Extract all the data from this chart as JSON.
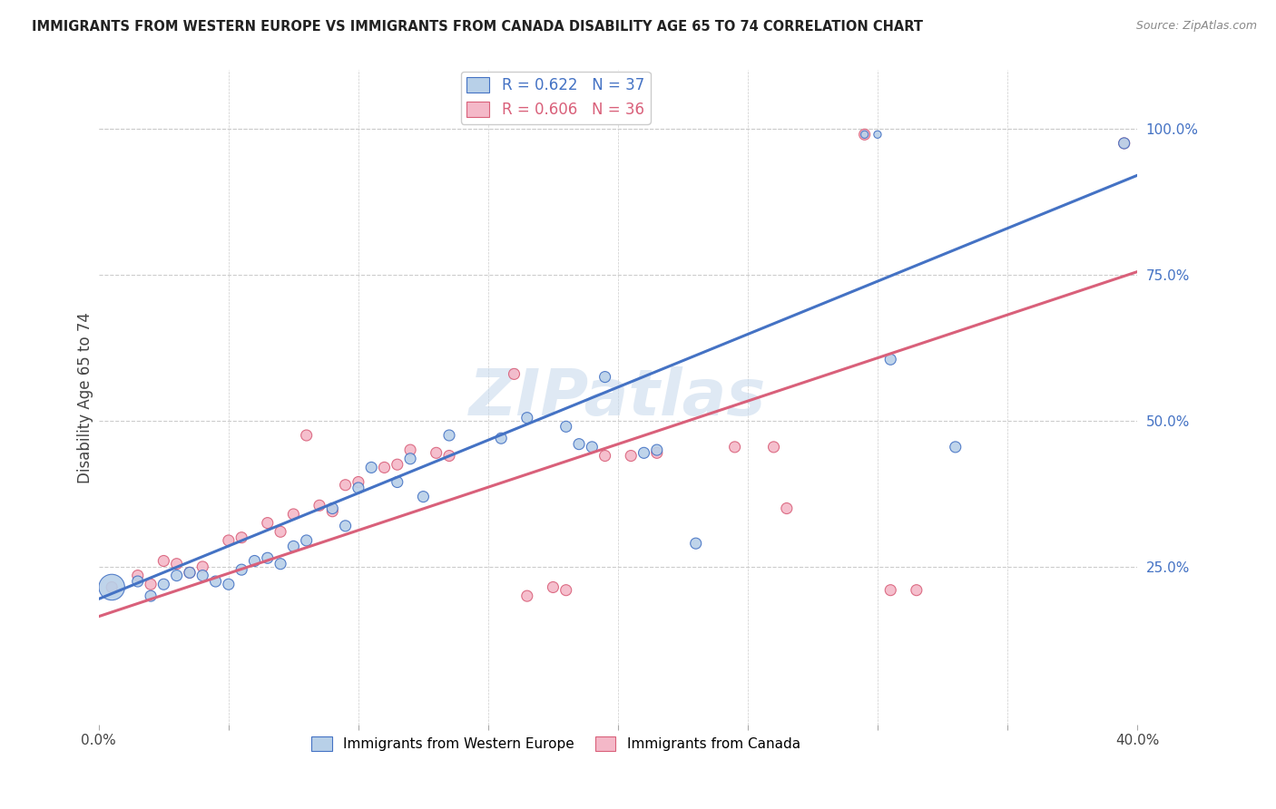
{
  "title": "IMMIGRANTS FROM WESTERN EUROPE VS IMMIGRANTS FROM CANADA DISABILITY AGE 65 TO 74 CORRELATION CHART",
  "source": "Source: ZipAtlas.com",
  "ylabel": "Disability Age 65 to 74",
  "xlim": [
    0.0,
    0.4
  ],
  "ylim": [
    -0.02,
    1.1
  ],
  "right_yticks": [
    0.25,
    0.5,
    0.75,
    1.0
  ],
  "right_yticklabels": [
    "25.0%",
    "50.0%",
    "75.0%",
    "100.0%"
  ],
  "xticks": [
    0.0,
    0.05,
    0.1,
    0.15,
    0.2,
    0.25,
    0.3,
    0.35,
    0.4
  ],
  "xticklabels": [
    "0.0%",
    "",
    "",
    "",
    "",
    "",
    "",
    "",
    "40.0%"
  ],
  "blue_R": 0.622,
  "blue_N": 37,
  "pink_R": 0.606,
  "pink_N": 36,
  "blue_color": "#b8d0e8",
  "blue_line_color": "#4472c4",
  "pink_color": "#f4b8c8",
  "pink_line_color": "#d9607a",
  "blue_line_x0": 0.0,
  "blue_line_y0": 0.195,
  "blue_line_x1": 0.4,
  "blue_line_y1": 0.92,
  "pink_line_x0": 0.0,
  "pink_line_y0": 0.165,
  "pink_line_x1": 0.4,
  "pink_line_y1": 0.755,
  "blue_scatter_x": [
    0.295,
    0.3,
    0.005,
    0.015,
    0.02,
    0.025,
    0.03,
    0.035,
    0.04,
    0.045,
    0.05,
    0.055,
    0.06,
    0.065,
    0.07,
    0.075,
    0.08,
    0.09,
    0.095,
    0.1,
    0.105,
    0.115,
    0.12,
    0.125,
    0.135,
    0.155,
    0.165,
    0.18,
    0.185,
    0.19,
    0.195,
    0.21,
    0.215,
    0.23,
    0.305,
    0.33,
    0.395
  ],
  "blue_scatter_y": [
    0.99,
    0.99,
    0.215,
    0.225,
    0.2,
    0.22,
    0.235,
    0.24,
    0.235,
    0.225,
    0.22,
    0.245,
    0.26,
    0.265,
    0.255,
    0.285,
    0.295,
    0.35,
    0.32,
    0.385,
    0.42,
    0.395,
    0.435,
    0.37,
    0.475,
    0.47,
    0.505,
    0.49,
    0.46,
    0.455,
    0.575,
    0.445,
    0.45,
    0.29,
    0.605,
    0.455,
    0.975
  ],
  "blue_scatter_sizes": [
    35,
    35,
    420,
    75,
    75,
    75,
    75,
    75,
    75,
    75,
    75,
    75,
    75,
    75,
    75,
    75,
    75,
    75,
    75,
    75,
    75,
    75,
    75,
    75,
    75,
    75,
    75,
    75,
    75,
    75,
    75,
    75,
    75,
    75,
    75,
    75,
    75
  ],
  "pink_scatter_x": [
    0.295,
    0.005,
    0.015,
    0.02,
    0.025,
    0.03,
    0.035,
    0.04,
    0.05,
    0.055,
    0.065,
    0.07,
    0.075,
    0.08,
    0.085,
    0.09,
    0.095,
    0.1,
    0.11,
    0.115,
    0.12,
    0.13,
    0.135,
    0.16,
    0.165,
    0.175,
    0.18,
    0.195,
    0.205,
    0.215,
    0.245,
    0.26,
    0.265,
    0.305,
    0.315,
    0.395
  ],
  "pink_scatter_y": [
    0.99,
    0.215,
    0.235,
    0.22,
    0.26,
    0.255,
    0.24,
    0.25,
    0.295,
    0.3,
    0.325,
    0.31,
    0.34,
    0.475,
    0.355,
    0.345,
    0.39,
    0.395,
    0.42,
    0.425,
    0.45,
    0.445,
    0.44,
    0.58,
    0.2,
    0.215,
    0.21,
    0.44,
    0.44,
    0.445,
    0.455,
    0.455,
    0.35,
    0.21,
    0.21,
    0.975
  ],
  "pink_scatter_sizes": [
    75,
    75,
    75,
    75,
    75,
    75,
    75,
    75,
    75,
    75,
    75,
    75,
    75,
    75,
    75,
    75,
    75,
    75,
    75,
    75,
    75,
    75,
    75,
    75,
    75,
    75,
    75,
    75,
    75,
    75,
    75,
    75,
    75,
    75,
    75,
    75
  ],
  "watermark": "ZIPatlas",
  "legend_blue_label": "R = 0.622   N = 37",
  "legend_pink_label": "R = 0.606   N = 36",
  "legend_blue_text_color": "#4472c4",
  "legend_pink_text_color": "#d9607a",
  "grid_color": "#cccccc",
  "background_color": "#ffffff"
}
